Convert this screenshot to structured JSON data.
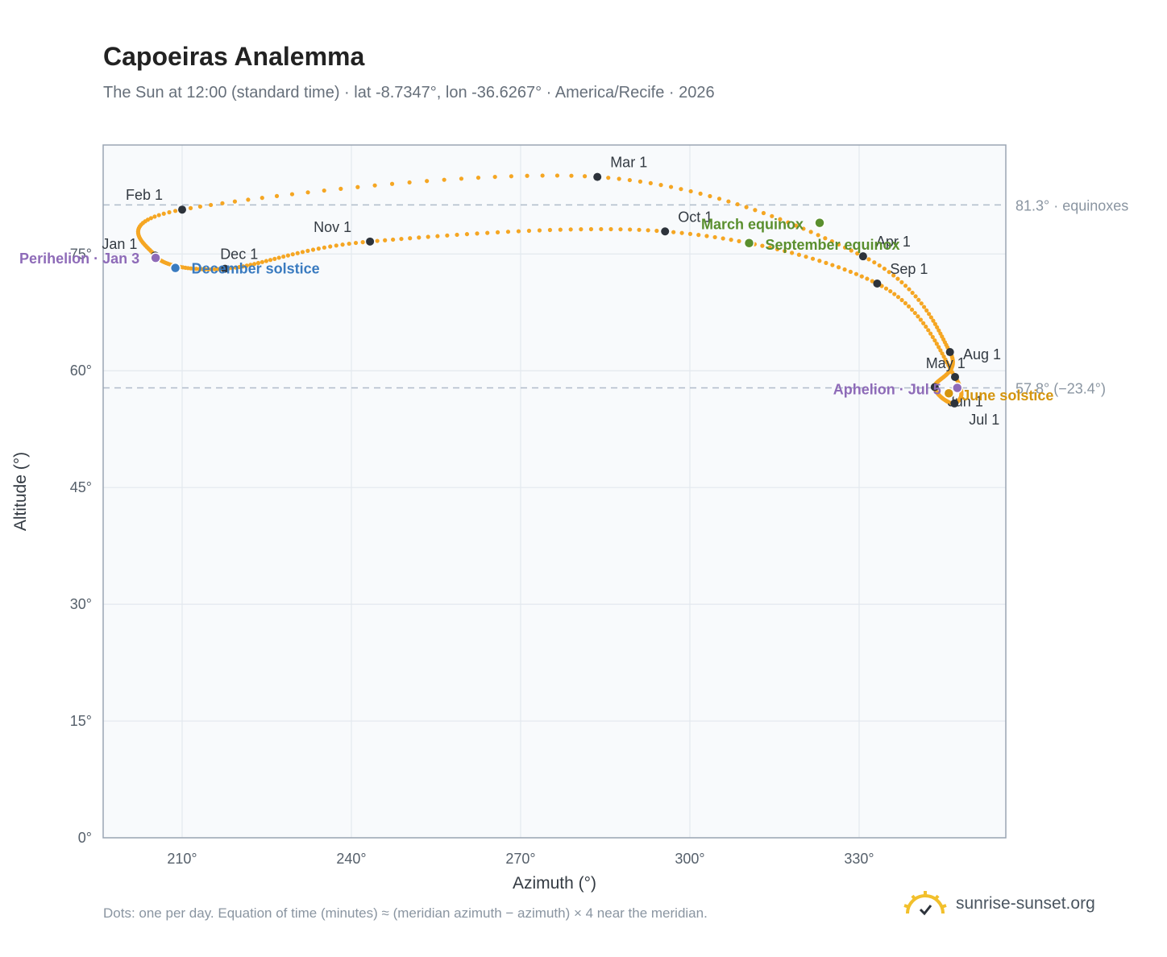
{
  "header": {
    "title": "Capoeiras Analemma",
    "subtitle": "The Sun at 12:00 (standard time) · lat -8.7347°, lon -36.6267° · America/Recife · 2026"
  },
  "footer": {
    "note": "Dots: one per day. Equation of time (minutes) ≈ (meridian azimuth − azimuth) × 4 near the meridian.",
    "brand": "sunrise-sunset.org"
  },
  "colors": {
    "curve": "#f5a623",
    "month_marker": "#2d333b",
    "perihelion": "#8e6bb8",
    "december_solstice": "#3a7bc0",
    "equinox": "#5a8f2e",
    "june_solstice": "#d4950f",
    "reference_line": "#b0bcc9",
    "plot_bg": "#f8fafc",
    "grid": "#e3e8ee",
    "axis_text": "#555f6a"
  },
  "chart_data": {
    "type": "scatter",
    "xlabel": "Azimuth (°)",
    "ylabel": "Altitude (°)",
    "xlim": [
      196,
      356
    ],
    "ylim": [
      0,
      89
    ],
    "x_ticks": [
      {
        "value": 210,
        "label": "210°"
      },
      {
        "value": 240,
        "label": "240°"
      },
      {
        "value": 270,
        "label": "270°"
      },
      {
        "value": 300,
        "label": "300°"
      },
      {
        "value": 330,
        "label": "330°"
      }
    ],
    "y_ticks": [
      {
        "value": 0,
        "label": "0°"
      },
      {
        "value": 15,
        "label": "15°"
      },
      {
        "value": 30,
        "label": "30°"
      },
      {
        "value": 45,
        "label": "45°"
      },
      {
        "value": 60,
        "label": "60°"
      },
      {
        "value": 75,
        "label": "75°"
      }
    ],
    "grid": true,
    "reference_lines": [
      {
        "value": 81.3,
        "label": "81.3° · equinoxes"
      },
      {
        "value": 57.8,
        "label": "57.8° (−23.4°)"
      }
    ],
    "month_points": [
      {
        "label": "Jan 1",
        "az": 205.2,
        "alt": 74.8
      },
      {
        "label": "Feb 1",
        "az": 210.0,
        "alt": 80.7
      },
      {
        "label": "Mar 1",
        "az": 283.6,
        "alt": 84.9
      },
      {
        "label": "Apr 1",
        "az": 330.7,
        "alt": 74.7
      },
      {
        "label": "May 1",
        "az": 346.1,
        "alt": 62.4
      },
      {
        "label": "Jun 1",
        "az": 343.4,
        "alt": 57.9
      },
      {
        "label": "Jul 1",
        "az": 346.9,
        "alt": 55.8
      },
      {
        "label": "Aug 1",
        "az": 347.0,
        "alt": 59.2
      },
      {
        "label": "Sep 1",
        "az": 333.2,
        "alt": 71.2
      },
      {
        "label": "Oct 1",
        "az": 295.6,
        "alt": 77.9
      },
      {
        "label": "Nov 1",
        "az": 243.3,
        "alt": 76.6
      },
      {
        "label": "Dec 1",
        "az": 217.6,
        "alt": 73.1
      }
    ],
    "special_points": [
      {
        "label": "Perihelion · Jan 3",
        "az": 205.3,
        "alt": 74.5,
        "kind": "perihelion"
      },
      {
        "label": "December solstice",
        "az": 208.8,
        "alt": 73.2,
        "kind": "december_solstice"
      },
      {
        "label": "March equinox",
        "az": 323.0,
        "alt": 79.0,
        "kind": "equinox"
      },
      {
        "label": "September equinox",
        "az": 310.5,
        "alt": 76.4,
        "kind": "equinox"
      },
      {
        "label": "June solstice",
        "az": 345.9,
        "alt": 57.1,
        "kind": "june_solstice"
      },
      {
        "label": "Aphelion · Jul 5",
        "az": 347.4,
        "alt": 57.8,
        "kind": "perihelion"
      }
    ]
  }
}
